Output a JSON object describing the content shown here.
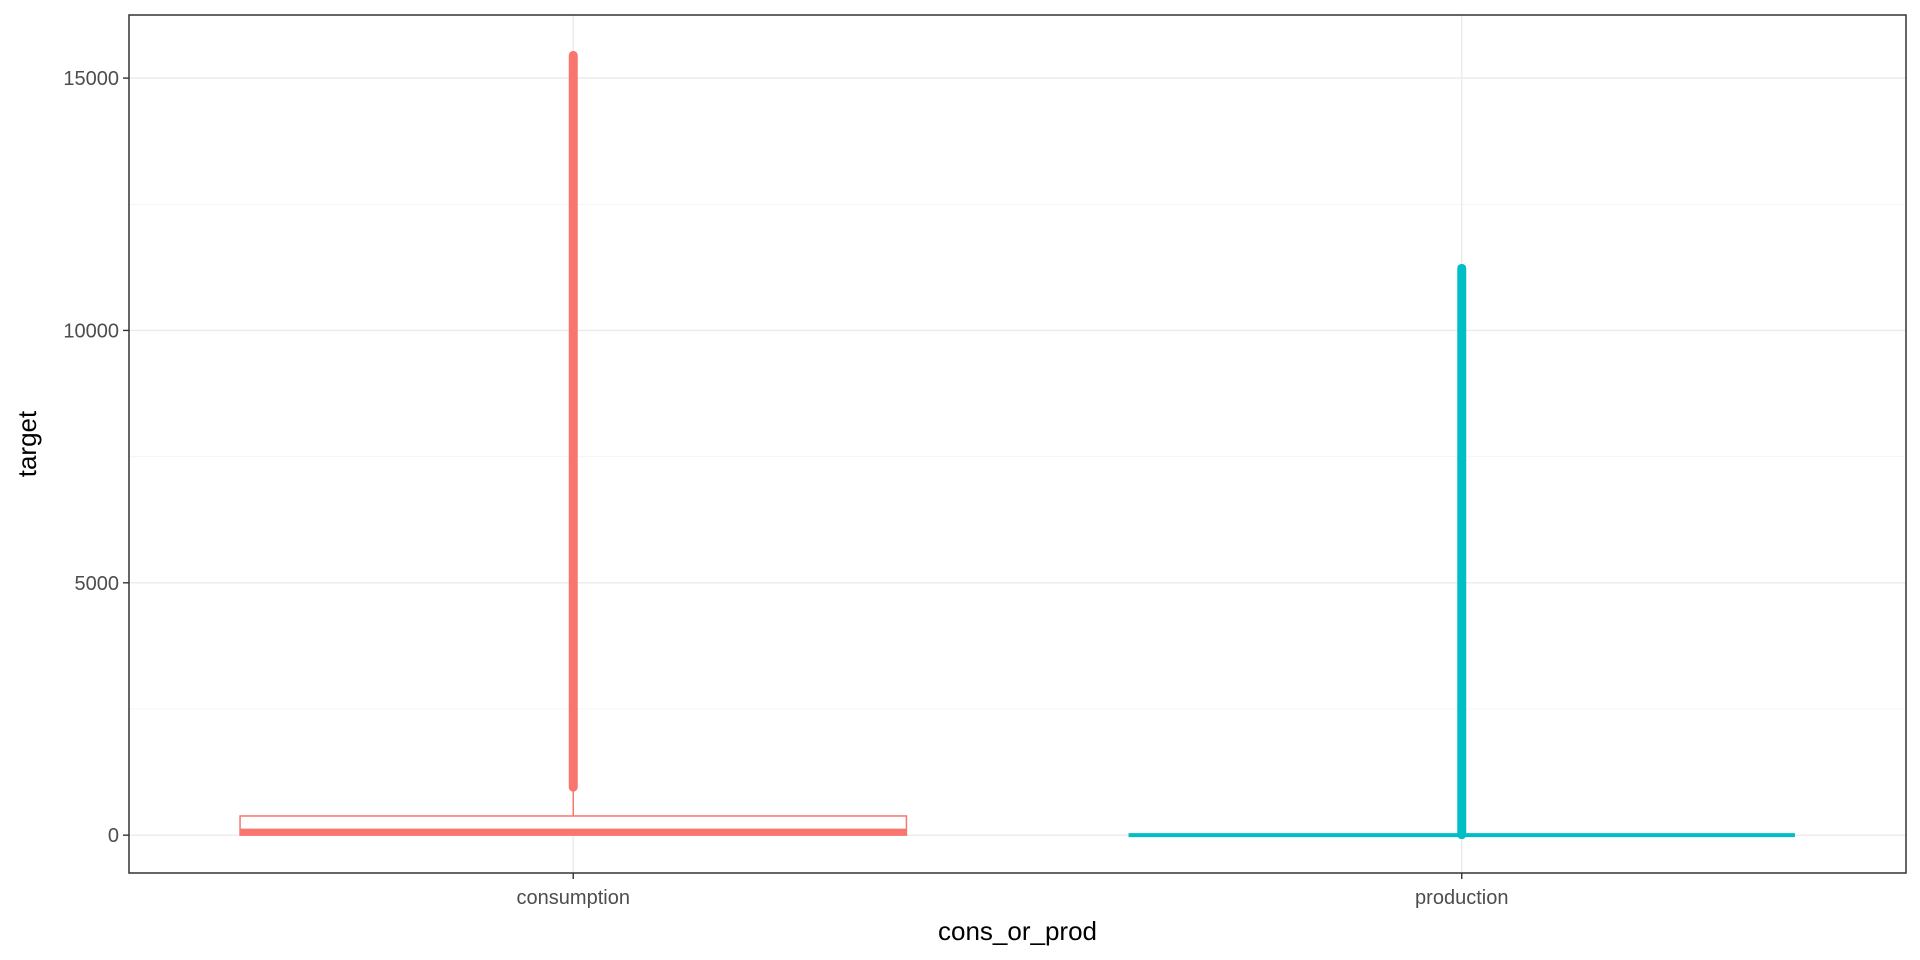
{
  "chart_data": {
    "type": "boxplot",
    "xlabel": "cons_or_prod",
    "ylabel": "target",
    "categories": [
      "consumption",
      "production"
    ],
    "y_ticks": [
      0,
      5000,
      10000,
      15000
    ],
    "ylim": [
      -750,
      16250
    ],
    "grid": true,
    "legend": "none",
    "boxes": [
      {
        "category": "consumption",
        "color": "#F8766D",
        "min": 0,
        "q1": 0,
        "median": 90,
        "q3": 380,
        "whisker_high": 950,
        "outliers_range": [
          950,
          15450
        ]
      },
      {
        "category": "production",
        "color": "#00BFC4",
        "min": 0,
        "q1": 0,
        "median": 0,
        "q3": 0,
        "whisker_high": 0,
        "outliers_range": [
          10,
          11230
        ]
      }
    ]
  }
}
